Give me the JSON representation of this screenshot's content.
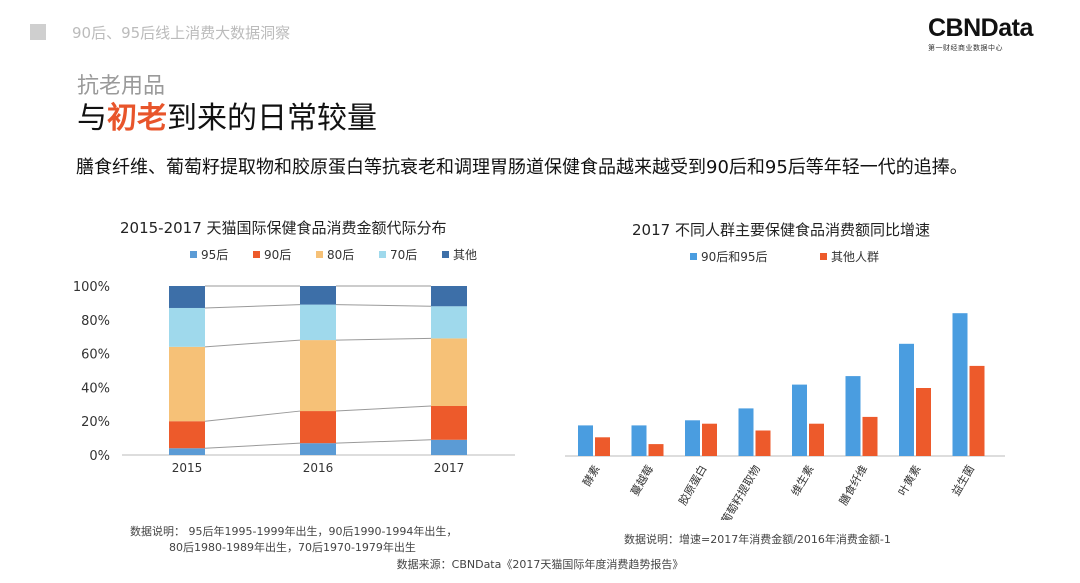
{
  "header": {
    "section_title": "90后、95后线上消费大数据洞察",
    "brand_name": "CBNData",
    "brand_tagline": "第一财经商业数据中心"
  },
  "slide": {
    "kicker": "抗老用品",
    "headline_pre": "与",
    "headline_highlight": "初老",
    "headline_post": "到来的日常较量",
    "intro": "膳食纤维、葡萄籽提取物和胶原蛋白等抗衰老和调理胃肠道保健食品越来越受到90后和95后等年轻一代的追捧。"
  },
  "chart_data": [
    {
      "type": "bar",
      "stacked": true,
      "title": "2015-2017 天猫国际保健食品消费金额代际分布",
      "categories": [
        "2015",
        "2016",
        "2017"
      ],
      "series": [
        {
          "name": "95后",
          "color": "#5b9bd5",
          "values": [
            4,
            7,
            9
          ]
        },
        {
          "name": "90后",
          "color": "#ed5a2b",
          "values": [
            16,
            19,
            20
          ]
        },
        {
          "name": "80后",
          "color": "#f6c177",
          "values": [
            44,
            42,
            40
          ]
        },
        {
          "name": "70后",
          "color": "#9fd9ec",
          "values": [
            23,
            21,
            19
          ]
        },
        {
          "name": "其他",
          "color": "#3d6fa8",
          "values": [
            13,
            11,
            12
          ]
        }
      ],
      "ylim": [
        0,
        100
      ],
      "yticks": [
        "0%",
        "20%",
        "40%",
        "60%",
        "80%",
        "100%"
      ],
      "legend": "top",
      "grid": false
    },
    {
      "type": "bar",
      "title": "2017 不同人群主要保健食品消费额同比增速",
      "categories": [
        "酵素",
        "蔓越莓",
        "胶原蛋白",
        "葡萄籽提取物",
        "维生素",
        "膳食纤维",
        "叶黄素",
        "益生菌"
      ],
      "series": [
        {
          "name": "90后和95后",
          "color": "#4a9de0",
          "values": [
            18,
            18,
            21,
            28,
            42,
            47,
            66,
            84
          ]
        },
        {
          "name": "其他人群",
          "color": "#ed5a2b",
          "values": [
            11,
            7,
            19,
            15,
            19,
            23,
            40,
            53
          ]
        }
      ],
      "legend": "top",
      "grid": false
    }
  ],
  "notes": {
    "left_line1": "数据说明：  95后年1995-1999年出生，90后1990-1994年出生，",
    "left_line2": "80后1980-1989年出生，70后1970-1979年出生",
    "right": "数据说明：增速=2017年消费金额/2016年消费金额-1",
    "source": "数据来源：CBNData《2017天猫国际年度消费趋势报告》"
  }
}
